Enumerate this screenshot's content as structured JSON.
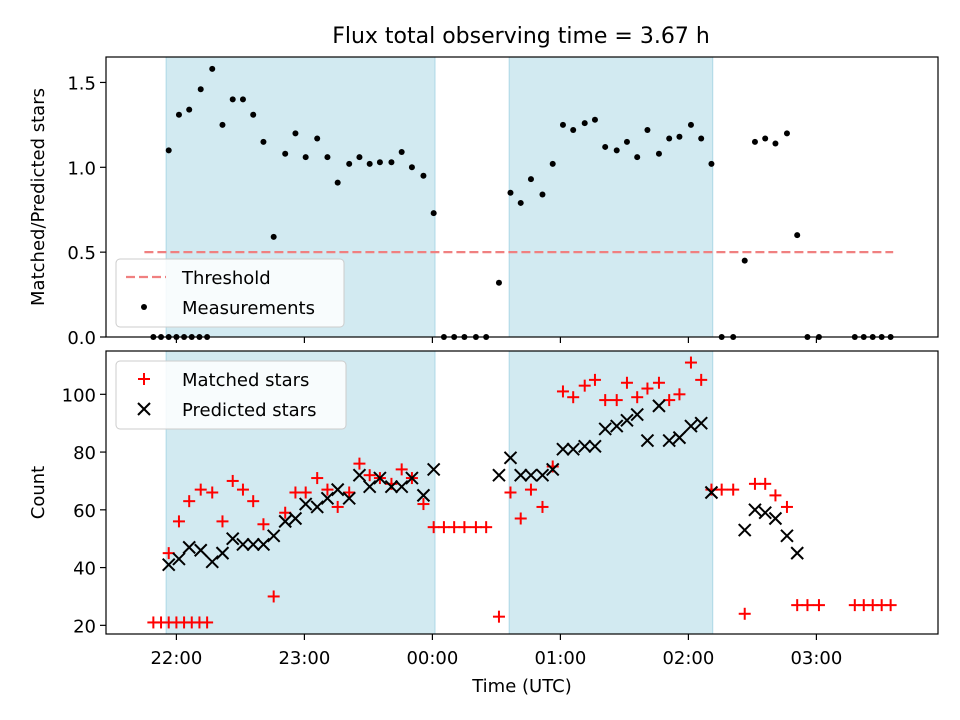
{
  "title": "Flux total observing time = 3.67 h",
  "colors": {
    "band": "#add8e6",
    "threshold": "#f08080",
    "measurement": "#000000",
    "matched": "#ff0000",
    "predicted": "#000000",
    "axis": "#000000"
  },
  "chart_data": [
    {
      "type": "scatter",
      "panel": "top",
      "xlabel": "",
      "ylabel": "Matched/Predicted stars",
      "ylim": [
        0,
        1.65
      ],
      "yticks": [
        0.0,
        0.5,
        1.0,
        1.5
      ],
      "ytick_labels": [
        "0.0",
        "0.5",
        "1.0",
        "1.5"
      ],
      "xlim_hours": [
        21.45,
        27.95
      ],
      "grid": false,
      "legend_position": "lower-left",
      "shaded_intervals_hours": [
        [
          21.92,
          24.02
        ],
        [
          24.6,
          26.19
        ]
      ],
      "threshold": {
        "name": "Threshold",
        "value": 0.5,
        "x_range_hours": [
          21.75,
          27.6
        ]
      },
      "series": [
        {
          "name": "Measurements",
          "marker": "dot",
          "points": [
            [
              21.82,
              0
            ],
            [
              21.88,
              0
            ],
            [
              21.94,
              0
            ],
            [
              22.0,
              0
            ],
            [
              22.06,
              0
            ],
            [
              22.12,
              0
            ],
            [
              22.18,
              0
            ],
            [
              22.24,
              0
            ],
            [
              21.94,
              1.1
            ],
            [
              22.02,
              1.31
            ],
            [
              22.1,
              1.34
            ],
            [
              22.19,
              1.46
            ],
            [
              22.28,
              1.58
            ],
            [
              22.36,
              1.25
            ],
            [
              22.44,
              1.4
            ],
            [
              22.52,
              1.4
            ],
            [
              22.6,
              1.31
            ],
            [
              22.68,
              1.15
            ],
            [
              22.76,
              0.59
            ],
            [
              22.85,
              1.08
            ],
            [
              22.93,
              1.2
            ],
            [
              23.01,
              1.06
            ],
            [
              23.1,
              1.17
            ],
            [
              23.18,
              1.06
            ],
            [
              23.26,
              0.91
            ],
            [
              23.35,
              1.02
            ],
            [
              23.43,
              1.06
            ],
            [
              23.51,
              1.02
            ],
            [
              23.59,
              1.03
            ],
            [
              23.68,
              1.03
            ],
            [
              23.76,
              1.09
            ],
            [
              23.84,
              1.0
            ],
            [
              23.93,
              0.95
            ],
            [
              24.01,
              0.73
            ],
            [
              24.09,
              0
            ],
            [
              24.17,
              0
            ],
            [
              24.25,
              0
            ],
            [
              24.34,
              0
            ],
            [
              24.42,
              0
            ],
            [
              24.52,
              0.32
            ],
            [
              24.61,
              0.85
            ],
            [
              24.69,
              0.79
            ],
            [
              24.77,
              0.93
            ],
            [
              24.86,
              0.84
            ],
            [
              24.94,
              1.02
            ],
            [
              25.02,
              1.25
            ],
            [
              25.1,
              1.22
            ],
            [
              25.19,
              1.26
            ],
            [
              25.27,
              1.28
            ],
            [
              25.35,
              1.12
            ],
            [
              25.44,
              1.1
            ],
            [
              25.52,
              1.15
            ],
            [
              25.6,
              1.06
            ],
            [
              25.68,
              1.22
            ],
            [
              25.77,
              1.08
            ],
            [
              25.85,
              1.17
            ],
            [
              25.93,
              1.18
            ],
            [
              26.02,
              1.25
            ],
            [
              26.1,
              1.17
            ],
            [
              26.18,
              1.02
            ],
            [
              26.26,
              0
            ],
            [
              26.35,
              0
            ],
            [
              26.44,
              0.45
            ],
            [
              26.52,
              1.15
            ],
            [
              26.6,
              1.17
            ],
            [
              26.68,
              1.14
            ],
            [
              26.77,
              1.2
            ],
            [
              26.85,
              0.6
            ],
            [
              26.93,
              0
            ],
            [
              27.02,
              0
            ],
            [
              27.3,
              0
            ],
            [
              27.37,
              0
            ],
            [
              27.44,
              0
            ],
            [
              27.51,
              0
            ],
            [
              27.58,
              0
            ]
          ]
        }
      ],
      "legend": [
        "Threshold",
        "Measurements"
      ]
    },
    {
      "type": "scatter",
      "panel": "bottom",
      "xlabel": "Time (UTC)",
      "ylabel": "Count",
      "ylim": [
        17,
        115
      ],
      "yticks": [
        20,
        40,
        60,
        80,
        100
      ],
      "ytick_labels": [
        "20",
        "40",
        "60",
        "80",
        "100"
      ],
      "xlim_hours": [
        21.45,
        27.95
      ],
      "xticks_hours": [
        22,
        23,
        24,
        25,
        26,
        27
      ],
      "xtick_labels": [
        "22:00",
        "23:00",
        "00:00",
        "01:00",
        "02:00",
        "03:00"
      ],
      "grid": false,
      "legend_position": "upper-left",
      "shaded_intervals_hours": [
        [
          21.92,
          24.02
        ],
        [
          24.6,
          26.19
        ]
      ],
      "series": [
        {
          "name": "Matched stars",
          "marker": "plus",
          "points": [
            [
              21.82,
              21
            ],
            [
              21.88,
              21
            ],
            [
              21.94,
              21
            ],
            [
              22.0,
              21
            ],
            [
              22.06,
              21
            ],
            [
              22.12,
              21
            ],
            [
              22.18,
              21
            ],
            [
              22.24,
              21
            ],
            [
              21.94,
              45
            ],
            [
              22.02,
              56
            ],
            [
              22.1,
              63
            ],
            [
              22.19,
              67
            ],
            [
              22.28,
              66
            ],
            [
              22.36,
              56
            ],
            [
              22.44,
              70
            ],
            [
              22.52,
              67
            ],
            [
              22.6,
              63
            ],
            [
              22.68,
              55
            ],
            [
              22.76,
              30
            ],
            [
              22.85,
              59
            ],
            [
              22.93,
              66
            ],
            [
              23.01,
              66
            ],
            [
              23.1,
              71
            ],
            [
              23.18,
              67
            ],
            [
              23.26,
              61
            ],
            [
              23.35,
              66
            ],
            [
              23.43,
              76
            ],
            [
              23.51,
              72
            ],
            [
              23.59,
              71
            ],
            [
              23.68,
              69
            ],
            [
              23.76,
              74
            ],
            [
              23.84,
              71
            ],
            [
              23.93,
              62
            ],
            [
              24.01,
              54
            ],
            [
              24.09,
              54
            ],
            [
              24.17,
              54
            ],
            [
              24.25,
              54
            ],
            [
              24.34,
              54
            ],
            [
              24.42,
              54
            ],
            [
              24.52,
              23
            ],
            [
              24.61,
              66
            ],
            [
              24.69,
              57
            ],
            [
              24.77,
              67
            ],
            [
              24.86,
              61
            ],
            [
              24.94,
              75
            ],
            [
              25.02,
              101
            ],
            [
              25.1,
              99
            ],
            [
              25.19,
              103
            ],
            [
              25.27,
              105
            ],
            [
              25.35,
              98
            ],
            [
              25.44,
              98
            ],
            [
              25.52,
              104
            ],
            [
              25.6,
              99
            ],
            [
              25.68,
              102
            ],
            [
              25.77,
              104
            ],
            [
              25.85,
              98
            ],
            [
              25.93,
              100
            ],
            [
              26.02,
              111
            ],
            [
              26.1,
              105
            ],
            [
              26.18,
              67
            ],
            [
              26.26,
              67
            ],
            [
              26.35,
              67
            ],
            [
              26.44,
              24
            ],
            [
              26.52,
              69
            ],
            [
              26.6,
              69
            ],
            [
              26.68,
              65
            ],
            [
              26.77,
              61
            ],
            [
              26.85,
              27
            ],
            [
              26.93,
              27
            ],
            [
              27.02,
              27
            ],
            [
              27.3,
              27
            ],
            [
              27.37,
              27
            ],
            [
              27.44,
              27
            ],
            [
              27.51,
              27
            ],
            [
              27.58,
              27
            ]
          ]
        },
        {
          "name": "Predicted stars",
          "marker": "x",
          "points": [
            [
              21.94,
              41
            ],
            [
              22.02,
              43
            ],
            [
              22.1,
              47
            ],
            [
              22.19,
              46
            ],
            [
              22.28,
              42
            ],
            [
              22.36,
              45
            ],
            [
              22.44,
              50
            ],
            [
              22.52,
              48
            ],
            [
              22.6,
              48
            ],
            [
              22.68,
              48
            ],
            [
              22.76,
              51
            ],
            [
              22.85,
              56
            ],
            [
              22.93,
              57
            ],
            [
              23.01,
              62
            ],
            [
              23.1,
              61
            ],
            [
              23.18,
              64
            ],
            [
              23.26,
              67
            ],
            [
              23.35,
              64
            ],
            [
              23.43,
              72
            ],
            [
              23.51,
              68
            ],
            [
              23.59,
              71
            ],
            [
              23.68,
              68
            ],
            [
              23.76,
              68
            ],
            [
              23.84,
              71
            ],
            [
              23.93,
              65
            ],
            [
              24.01,
              74
            ],
            [
              24.52,
              72
            ],
            [
              24.61,
              78
            ],
            [
              24.69,
              72
            ],
            [
              24.77,
              72
            ],
            [
              24.86,
              72
            ],
            [
              24.94,
              74
            ],
            [
              25.02,
              81
            ],
            [
              25.1,
              81
            ],
            [
              25.19,
              82
            ],
            [
              25.27,
              82
            ],
            [
              25.35,
              88
            ],
            [
              25.44,
              89
            ],
            [
              25.52,
              91
            ],
            [
              25.6,
              93
            ],
            [
              25.68,
              84
            ],
            [
              25.77,
              96
            ],
            [
              25.85,
              84
            ],
            [
              25.93,
              85
            ],
            [
              26.02,
              89
            ],
            [
              26.1,
              90
            ],
            [
              26.18,
              66
            ],
            [
              26.44,
              53
            ],
            [
              26.52,
              60
            ],
            [
              26.6,
              59
            ],
            [
              26.68,
              57
            ],
            [
              26.77,
              51
            ],
            [
              26.85,
              45
            ]
          ]
        }
      ],
      "legend": [
        "Matched stars",
        "Predicted stars"
      ]
    }
  ]
}
